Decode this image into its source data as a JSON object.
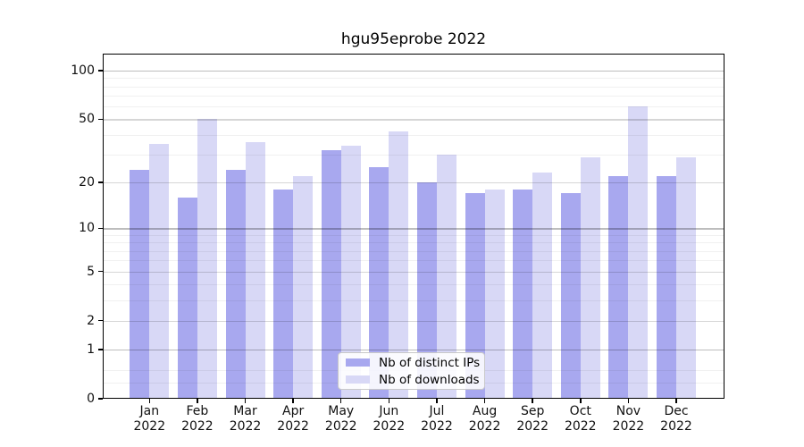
{
  "title": "hgu95eprobe 2022",
  "chart_data": {
    "type": "bar",
    "title": "hgu95eprobe 2022",
    "categories": [
      "Jan",
      "Feb",
      "Mar",
      "Apr",
      "May",
      "Jun",
      "Jul",
      "Aug",
      "Sep",
      "Oct",
      "Nov",
      "Dec"
    ],
    "year_label": "2022",
    "series": [
      {
        "key": "ips",
        "name": "Nb of distinct IPs",
        "color": "#a8a8ef",
        "values": [
          24,
          16,
          24,
          18,
          32,
          25,
          20,
          17,
          18,
          17,
          22,
          22
        ]
      },
      {
        "key": "downloads",
        "name": "Nb of downloads",
        "color": "#d8d8f6",
        "values": [
          35,
          50,
          36,
          22,
          34,
          42,
          30,
          18,
          23,
          29,
          60,
          29
        ]
      }
    ],
    "yscale": "log1p",
    "ylim": [
      0,
      127
    ],
    "yticks_labeled": [
      0,
      1,
      2,
      5,
      10,
      20,
      50,
      100
    ],
    "grid": {
      "on": true,
      "major_values": [
        1,
        10,
        100
      ],
      "mid_values": [
        2,
        5,
        20,
        50
      ],
      "minor_values": [
        0.25,
        0.5,
        3,
        4,
        6,
        7,
        8,
        9,
        30,
        40,
        60,
        70,
        80,
        90
      ],
      "major_color": "rgba(0,0,0,0.26)",
      "mid_color": "rgba(0,0,0,0.16)",
      "minor_color": "rgba(0,0,0,0.06)"
    },
    "legend": {
      "position": "lower center",
      "items": [
        "Nb of distinct IPs",
        "Nb of downloads"
      ]
    },
    "axis_color": "#000000"
  }
}
